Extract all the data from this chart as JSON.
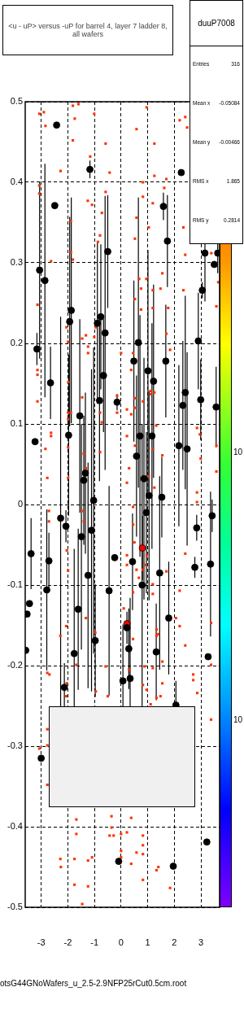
{
  "chart_data": {
    "type": "scatter",
    "title": "<u - uP> versus -uP for barrel 4, layer 7 ladder 8, all wafers",
    "xlim": [
      -3.6,
      3.7
    ],
    "ylim": [
      -0.5,
      0.5
    ],
    "xticks": [
      -3,
      -2,
      -1,
      0,
      1,
      2,
      3
    ],
    "yticks": [
      -0.5,
      -0.4,
      -0.3,
      -0.2,
      -0.1,
      0,
      0.1,
      0.2,
      0.3,
      0.4,
      0.5
    ],
    "grid": true,
    "legend": false,
    "annotations": [
      "duuP7008",
      "Entries 316",
      "Mean x -0.05084",
      "Mean y -0.00466",
      "RMS x 1.865",
      "RMS y 0.2814",
      "otsG44GNoWafers_u_2.5-2.9NFP25rCut0.5cm.root",
      "10",
      "10"
    ],
    "series": [
      {
        "color": "#000000",
        "marker": "circle",
        "x": [
          -2.42,
          -1.17,
          -2.49,
          2.26,
          1.59,
          1.74,
          -0.5,
          -3.06,
          -2.86,
          3.15,
          3.63,
          3.5,
          3.05,
          -1.87,
          -1.93,
          -0.76,
          -0.89,
          -0.6,
          -3.16,
          0.65,
          2.9,
          0.48,
          1.68,
          1.01,
          -0.66,
          1.22,
          -2.65,
          2.41,
          -0.81,
          -0.15,
          2.99,
          2.32,
          3.57,
          -1.55,
          -1.97,
          0.71,
          1.16,
          -3.23,
          2.17,
          2.48,
          0.58,
          -1.34,
          -1.4,
          0.86,
          1.05,
          1.53,
          -1.03,
          0.95,
          -2.27,
          -2.07,
          3.42,
          2.84,
          -1.11,
          -1.49,
          -3.38,
          -0.24,
          -2.71,
          0.43,
          2.77,
          3.36,
          1.45,
          -1.24,
          0.79,
          -2.79,
          -0.45,
          -3.44,
          -1.61,
          -3.53,
          1.79,
          0.8,
          0.22,
          0.22,
          -0.97,
          0.29,
          1.32,
          -1.76,
          -3.58,
          3.27,
          0.07,
          0.34,
          -2.13,
          2.06,
          -3.0,
          -0.09,
          1.96,
          3.22
        ],
        "values": [
          0.471,
          0.416,
          0.371,
          0.412,
          0.37,
          0.327,
          0.314,
          0.291,
          0.278,
          0.312,
          0.312,
          0.298,
          0.266,
          0.241,
          0.227,
          0.233,
          0.225,
          0.213,
          0.193,
          0.201,
          0.203,
          0.178,
          0.178,
          0.166,
          0.16,
          0.153,
          0.151,
          0.139,
          0.129,
          0.127,
          0.13,
          0.123,
          0.121,
          0.11,
          0.086,
          0.085,
          0.085,
          0.078,
          0.073,
          0.069,
          0.06,
          0.039,
          0.03,
          0.032,
          0.011,
          0.009,
          0.005,
          -0.01,
          -0.017,
          -0.027,
          -0.014,
          -0.029,
          -0.032,
          -0.04,
          -0.061,
          -0.066,
          -0.07,
          -0.071,
          -0.078,
          -0.074,
          -0.085,
          -0.088,
          -0.1,
          -0.106,
          -0.107,
          -0.123,
          -0.13,
          -0.136,
          -0.141,
          -0.054,
          -0.148,
          -0.153,
          -0.169,
          -0.179,
          -0.183,
          -0.185,
          -0.181,
          -0.189,
          -0.219,
          -0.216,
          -0.227,
          -0.249,
          -0.315,
          -0.443,
          -0.449,
          -0.419
        ],
        "errors": [
          null,
          0.011,
          null,
          null,
          0.017,
          0.057,
          0.07,
          0.11,
          0.145,
          0.06,
          0.025,
          null,
          0.01,
          0.14,
          0.13,
          0.09,
          0.1,
          0.17,
          0.02,
          0.18,
          0.06,
          0.1,
          0.07,
          0.15,
          0.07,
          0.12,
          0.045,
          0.12,
          0.1,
          0.01,
          0.05,
          0.08,
          0.05,
          0.12,
          0.1,
          0.15,
          0.14,
          null,
          0.1,
          0.12,
          0.1,
          0.1,
          0.08,
          0.15,
          0.13,
          0.05,
          0.19,
          0.1,
          0.25,
          0.02,
          0.02,
          0.016,
          0.2,
          0.14,
          0.044,
          null,
          0.035,
          0.06,
          0.013,
          0.09,
          0.12,
          0.14,
          0.2,
          0.1,
          0.13,
          null,
          0.1,
          null,
          0.07,
          0.04,
          null,
          0.02,
          0.07,
          0.05,
          0.06,
          0.13,
          null,
          null,
          0.07,
          0.1,
          0.03,
          0.03,
          null,
          null,
          null,
          null
        ],
        "colors": [
          "#000000",
          "#000000",
          "#000000",
          "#000000",
          "#000000",
          "#000000",
          "#000000",
          "#000000",
          "#000000",
          "#000000",
          "#000000",
          "#000000",
          "#000000",
          "#000000",
          "#000000",
          "#000000",
          "#000000",
          "#000000",
          "#000000",
          "#000000",
          "#000000",
          "#000000",
          "#000000",
          "#000000",
          "#000000",
          "#000000",
          "#000000",
          "#000000",
          "#000000",
          "#000000",
          "#000000",
          "#000000",
          "#000000",
          "#000000",
          "#000000",
          "#000000",
          "#000000",
          "#000000",
          "#000000",
          "#000000",
          "#000000",
          "#000000",
          "#000000",
          "#000000",
          "#000000",
          "#000000",
          "#000000",
          "#000000",
          "#000000",
          "#000000",
          "#000000",
          "#000000",
          "#000000",
          "#000000",
          "#000000",
          "#000000",
          "#000000",
          "#000000",
          "#000000",
          "#000000",
          "#000000",
          "#000000",
          "#000000",
          "#000000",
          "#000000",
          "#000000",
          "#000000",
          "#000000",
          "#000000",
          "#ff0000",
          "#ff0000",
          "#000000",
          "#000000",
          "#000000",
          "#000000",
          "#000000",
          "#000000",
          "#000000",
          "#000000",
          "#000000",
          "#000000",
          "#000000",
          "#000000",
          "#000000",
          "#000000",
          "#000000"
        ]
      },
      {
        "color": "#ff3300",
        "marker": "square",
        "x": [
          -3.07,
          -2.9,
          -2.84,
          -1.81,
          -1.6,
          -1.74,
          -1.01,
          -1.81,
          -0.58,
          -2.27,
          -0.43,
          -1.16,
          0.58,
          0.96,
          1.25,
          2.2,
          2.41,
          2.48,
          1.25,
          1.7,
          0.82,
          -3.07,
          -3.07,
          -0.58,
          -1.25,
          -1.09,
          -0.72,
          0.58,
          1.19,
          1.62,
          0.82,
          1.04,
          2.34,
          -0.79,
          -0.87,
          0.52,
          -1.89,
          -2.63,
          -1.89,
          -1.81,
          2.41,
          3.39,
          1.55,
          0.95,
          0.68,
          0.75,
          1.19,
          1.48,
          2.34,
          3.65,
          -3.14,
          0.52,
          -2.05,
          -1.99,
          -1.46,
          -1.32,
          -1.24,
          -1.24,
          -1.01,
          -0.95,
          0.0,
          0.75,
          1.19,
          1.77,
          1.7,
          1.84,
          3.58,
          0.45,
          0.38,
          -3.14,
          -3.14,
          -3.14,
          -1.98,
          -1.46,
          -0.15,
          -0.15,
          0.22,
          0.38,
          0.52,
          0.52,
          0.82,
          1.11,
          1.11,
          1.25,
          -0.79,
          -1.99,
          -1.89,
          -1.99,
          -0.72,
          1.32,
          2.85,
          2.96,
          -2.63,
          -2.63,
          0.22,
          -2.84,
          -1.99,
          -0.79,
          -1.4,
          0.52,
          1.19,
          1.55,
          2.99,
          3.58,
          3.58,
          -2.77,
          -1.99,
          -1.32,
          0.3,
          0.22,
          1.25,
          1.04,
          2.85,
          2.85,
          0.45,
          -2.71,
          -2.71,
          -2.04,
          -1.99,
          -1.46,
          -1.4,
          0.45,
          0.5,
          0.22,
          0.22,
          0.58,
          0.82,
          0.88,
          0.96,
          0.67,
          1.7,
          2.41,
          1.19,
          1.19,
          2.2,
          0.45,
          0.1,
          -1.32,
          -2.06,
          -2.28,
          -0.97,
          0.45,
          1.33,
          1.33,
          1.4,
          2.06,
          2.2,
          2.41,
          3.38,
          3.38,
          1.55,
          -1.68,
          -0.58,
          0.88,
          1.19,
          -2.77,
          -2.69,
          0.3,
          -2.04,
          1.55,
          0.82,
          2.71,
          2.71,
          0.96,
          2.86,
          -2.06,
          -0.95,
          -0.5,
          1.33,
          1.48,
          1.11,
          3.38,
          -2.77,
          -3.07,
          -2.77,
          -2.77,
          -1.68,
          -0.36,
          -0.36,
          -1.68,
          -0.43,
          -0.28,
          0.0,
          0.22,
          0.38,
          0.82,
          0.82,
          0.82,
          0.0,
          0.0,
          0.58,
          -2.28,
          -2.26,
          -1.75,
          -1.24,
          -1.09,
          0.38,
          1.4,
          1.33,
          0.82,
          -1.75,
          -1.24,
          1.84,
          -1.46
        ],
        "values": [
          0.485,
          0.487,
          0.47,
          0.495,
          0.497,
          0.479,
          0.485,
          0.452,
          0.448,
          0.414,
          0.412,
          0.432,
          0.466,
          0.493,
          0.448,
          0.477,
          0.481,
          0.468,
          0.408,
          0.404,
          0.4,
          0.396,
          0.386,
          0.388,
          0.377,
          0.372,
          0.362,
          0.356,
          0.374,
          0.393,
          0.382,
          0.344,
          0.344,
          0.334,
          0.326,
          0.33,
          0.352,
          0.302,
          0.313,
          0.304,
          0.31,
          0.312,
          0.287,
          0.28,
          0.28,
          0.268,
          0.266,
          0.268,
          0.266,
          0.276,
          0.248,
          0.255,
          0.22,
          0.202,
          0.206,
          0.21,
          0.196,
          0.188,
          0.208,
          0.22,
          0.188,
          0.242,
          0.244,
          0.244,
          0.212,
          0.192,
          0.246,
          0.188,
          0.167,
          0.167,
          0.161,
          0.128,
          0.152,
          0.133,
          0.135,
          0.114,
          0.118,
          0.112,
          0.132,
          0.12,
          0.128,
          0.141,
          0.137,
          0.139,
          0.114,
          0.114,
          0.114,
          0.106,
          0.102,
          0.098,
          0.095,
          0.087,
          0.089,
          0.085,
          0.085,
          0.069,
          0.071,
          0.065,
          0.063,
          0.073,
          0.069,
          0.061,
          0.057,
          0.073,
          0.041,
          0.033,
          0.033,
          0.045,
          0.045,
          0.027,
          0.021,
          0.035,
          0.015,
          0.003,
          -0.003,
          -0.008,
          -0.021,
          -0.057,
          -0.082,
          -0.008,
          -0.021,
          -0.025,
          -0.047,
          -0.063,
          -0.075,
          -0.081,
          -0.081,
          -0.075,
          -0.063,
          -0.091,
          -0.083,
          -0.061,
          -0.099,
          -0.111,
          -0.107,
          -0.109,
          -0.129,
          -0.141,
          -0.151,
          -0.163,
          -0.159,
          -0.167,
          -0.155,
          -0.163,
          -0.161,
          -0.141,
          -0.151,
          -0.175,
          -0.147,
          -0.199,
          -0.195,
          -0.199,
          -0.201,
          -0.201,
          -0.203,
          -0.209,
          -0.211,
          -0.205,
          -0.222,
          -0.222,
          -0.224,
          -0.211,
          -0.218,
          -0.23,
          -0.234,
          -0.238,
          -0.232,
          -0.238,
          -0.24,
          -0.238,
          -0.248,
          -0.267,
          -0.279,
          -0.303,
          -0.299,
          -0.348,
          -0.391,
          -0.387,
          -0.401,
          -0.409,
          -0.411,
          -0.411,
          -0.409,
          -0.407,
          -0.389,
          -0.411,
          -0.423,
          -0.434,
          -0.43,
          -0.438,
          -0.432,
          -0.44,
          -0.45,
          -0.44,
          -0.442,
          -0.438,
          -0.446,
          -0.45,
          -0.454,
          -0.466,
          -0.472,
          -0.474,
          -0.476,
          -0.496
        ]
      }
    ]
  }
}
